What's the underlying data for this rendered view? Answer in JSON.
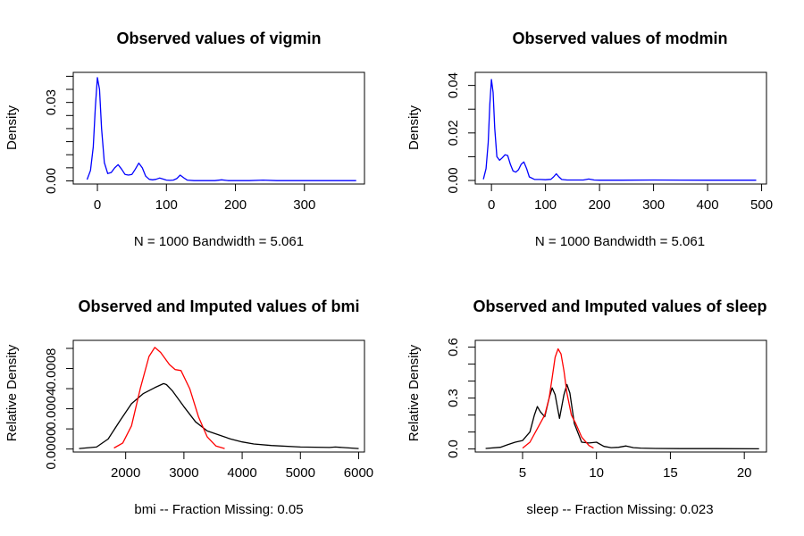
{
  "chart_data": [
    {
      "type": "line",
      "title": "Observed values of vigmin",
      "xlabel": "N = 1000   Bandwidth = 5.061",
      "ylabel": "Density",
      "xlim": [
        -35,
        387
      ],
      "ylim": [
        -0.0012,
        0.0415
      ],
      "xticks": [
        0,
        100,
        200,
        300
      ],
      "xtick_labels": [
        "0",
        "100",
        "200",
        "300"
      ],
      "yticks": [
        0,
        0.005,
        0.01,
        0.015,
        0.02,
        0.025,
        0.03,
        0.035,
        0.04
      ],
      "ytick_labels": {
        "0": "0.00",
        "0.03": "0.03"
      },
      "series": [
        {
          "color": "#0000ff",
          "x": [
            -15,
            -10,
            -6,
            -3,
            0,
            3,
            6,
            10,
            15,
            20,
            25,
            30,
            35,
            40,
            45,
            50,
            55,
            60,
            65,
            70,
            75,
            80,
            85,
            90,
            95,
            100,
            105,
            110,
            115,
            120,
            125,
            130,
            140,
            150,
            160,
            170,
            180,
            190,
            200,
            220,
            240,
            260,
            280,
            300,
            320,
            340,
            360,
            375
          ],
          "y": [
            0.0005,
            0.004,
            0.013,
            0.028,
            0.0395,
            0.035,
            0.02,
            0.007,
            0.0028,
            0.0032,
            0.005,
            0.0062,
            0.0045,
            0.0025,
            0.0022,
            0.0025,
            0.0045,
            0.0068,
            0.005,
            0.0018,
            0.0006,
            0.0004,
            0.0006,
            0.0011,
            0.0007,
            0.0003,
            0.0002,
            0.0003,
            0.0009,
            0.0022,
            0.0012,
            0.0003,
            0.0001,
            0.0001,
            0.0001,
            0.0001,
            0.0004,
            0.0001,
            0.0001,
            0.0001,
            0.0003,
            0.0001,
            0.0001,
            0.0001,
            0.0001,
            0.0001,
            0.0001,
            0.0001
          ]
        }
      ]
    },
    {
      "type": "line",
      "title": "Observed values of modmin",
      "xlabel": "N = 1000   Bandwidth = 5.061",
      "ylabel": "Density",
      "xlim": [
        -30,
        509
      ],
      "ylim": [
        -0.0015,
        0.0455
      ],
      "xticks": [
        0,
        100,
        200,
        300,
        400,
        500
      ],
      "xtick_labels": [
        "0",
        "100",
        "200",
        "300",
        "400",
        "500"
      ],
      "yticks": [
        0,
        0.01,
        0.02,
        0.03,
        0.04
      ],
      "ytick_labels": {
        "0": "0.00",
        "0.02": "0.02",
        "0.04": "0.04"
      },
      "series": [
        {
          "color": "#0000ff",
          "x": [
            -15,
            -10,
            -6,
            -3,
            0,
            3,
            6,
            10,
            15,
            20,
            25,
            30,
            35,
            40,
            45,
            50,
            55,
            60,
            65,
            70,
            80,
            90,
            100,
            110,
            115,
            120,
            125,
            130,
            140,
            150,
            170,
            180,
            190,
            200,
            240,
            300,
            400,
            490
          ],
          "y": [
            0.0005,
            0.005,
            0.016,
            0.032,
            0.0425,
            0.037,
            0.022,
            0.01,
            0.0085,
            0.0095,
            0.0108,
            0.0105,
            0.0068,
            0.004,
            0.0035,
            0.0045,
            0.0068,
            0.0078,
            0.005,
            0.0015,
            0.0004,
            0.0004,
            0.0003,
            0.0005,
            0.0015,
            0.0028,
            0.0015,
            0.0004,
            0.0002,
            0.0002,
            0.0002,
            0.0006,
            0.0002,
            0.0001,
            0.0001,
            0.0002,
            0.0001,
            0.0001
          ]
        }
      ]
    },
    {
      "type": "line",
      "title": "Observed and Imputed values of bmi",
      "xlabel": "bmi   --  Fraction Missing: 0.05",
      "ylabel": "Relative Density",
      "xlim": [
        1100,
        6100
      ],
      "ylim": [
        -3e-05,
        0.00108
      ],
      "xticks": [
        2000,
        3000,
        4000,
        5000,
        6000
      ],
      "xtick_labels": [
        "2000",
        "3000",
        "4000",
        "5000",
        "6000"
      ],
      "yticks": [
        0,
        0.0002,
        0.0004,
        0.0006,
        0.0008,
        0.001
      ],
      "ytick_labels": {
        "0": "0.0000",
        "0.0004": "0.0004",
        "0.0008": "0.0008"
      },
      "series": [
        {
          "color": "#000000",
          "x": [
            1200,
            1500,
            1700,
            1900,
            2100,
            2300,
            2500,
            2650,
            2700,
            2800,
            3000,
            3200,
            3400,
            3600,
            3800,
            4000,
            4200,
            4500,
            5000,
            5500,
            5600,
            6000
          ],
          "y": [
            5e-06,
            2e-05,
            0.0001,
            0.00028,
            0.00045,
            0.00055,
            0.00061,
            0.00065,
            0.00064,
            0.00058,
            0.00042,
            0.00027,
            0.00018,
            0.00014,
            0.0001,
            7e-05,
            5e-05,
            3.5e-05,
            2e-05,
            1.5e-05,
            2e-05,
            5e-06
          ]
        },
        {
          "color": "#ff0000",
          "x": [
            1800,
            1950,
            2100,
            2250,
            2400,
            2500,
            2600,
            2750,
            2850,
            2950,
            3100,
            3250,
            3400,
            3550,
            3700
          ],
          "y": [
            1e-05,
            6e-05,
            0.00023,
            0.0006,
            0.00092,
            0.00101,
            0.00096,
            0.00084,
            0.00079,
            0.00078,
            0.0006,
            0.00032,
            0.00012,
            3e-05,
            5e-06
          ]
        }
      ]
    },
    {
      "type": "line",
      "title": "Observed and Imputed values of sleep",
      "xlabel": "sleep   --  Fraction Missing: 0.023",
      "ylabel": "Relative Density",
      "xlim": [
        1.8,
        21.5
      ],
      "ylim": [
        -0.018,
        0.64
      ],
      "xticks": [
        5,
        10,
        15,
        20
      ],
      "xtick_labels": [
        "5",
        "10",
        "15",
        "20"
      ],
      "yticks": [
        0,
        0.1,
        0.2,
        0.3,
        0.4,
        0.5,
        0.6
      ],
      "ytick_labels": {
        "0": "0.0",
        "0.3": "0.3",
        "0.6": "0.6"
      },
      "series": [
        {
          "color": "#000000",
          "x": [
            2.5,
            3.5,
            4.0,
            4.5,
            5.0,
            5.5,
            5.8,
            6.0,
            6.2,
            6.5,
            6.8,
            7.0,
            7.2,
            7.5,
            7.8,
            8.0,
            8.2,
            8.5,
            9.0,
            9.5,
            10.0,
            10.5,
            11,
            11.5,
            12,
            12.5,
            13,
            14,
            16,
            18,
            21
          ],
          "y": [
            0.003,
            0.01,
            0.025,
            0.04,
            0.05,
            0.1,
            0.2,
            0.25,
            0.22,
            0.19,
            0.3,
            0.36,
            0.32,
            0.18,
            0.32,
            0.38,
            0.33,
            0.15,
            0.04,
            0.035,
            0.04,
            0.015,
            0.008,
            0.01,
            0.018,
            0.008,
            0.005,
            0.003,
            0.002,
            0.002,
            0.001
          ]
        },
        {
          "color": "#ff0000",
          "x": [
            5.0,
            5.5,
            6.0,
            6.5,
            6.8,
            7.0,
            7.2,
            7.4,
            7.6,
            7.8,
            8.0,
            8.3,
            8.6,
            9.0,
            9.5,
            9.8
          ],
          "y": [
            0.005,
            0.04,
            0.12,
            0.2,
            0.3,
            0.42,
            0.54,
            0.59,
            0.56,
            0.46,
            0.33,
            0.2,
            0.15,
            0.07,
            0.02,
            0.005
          ]
        }
      ]
    }
  ]
}
